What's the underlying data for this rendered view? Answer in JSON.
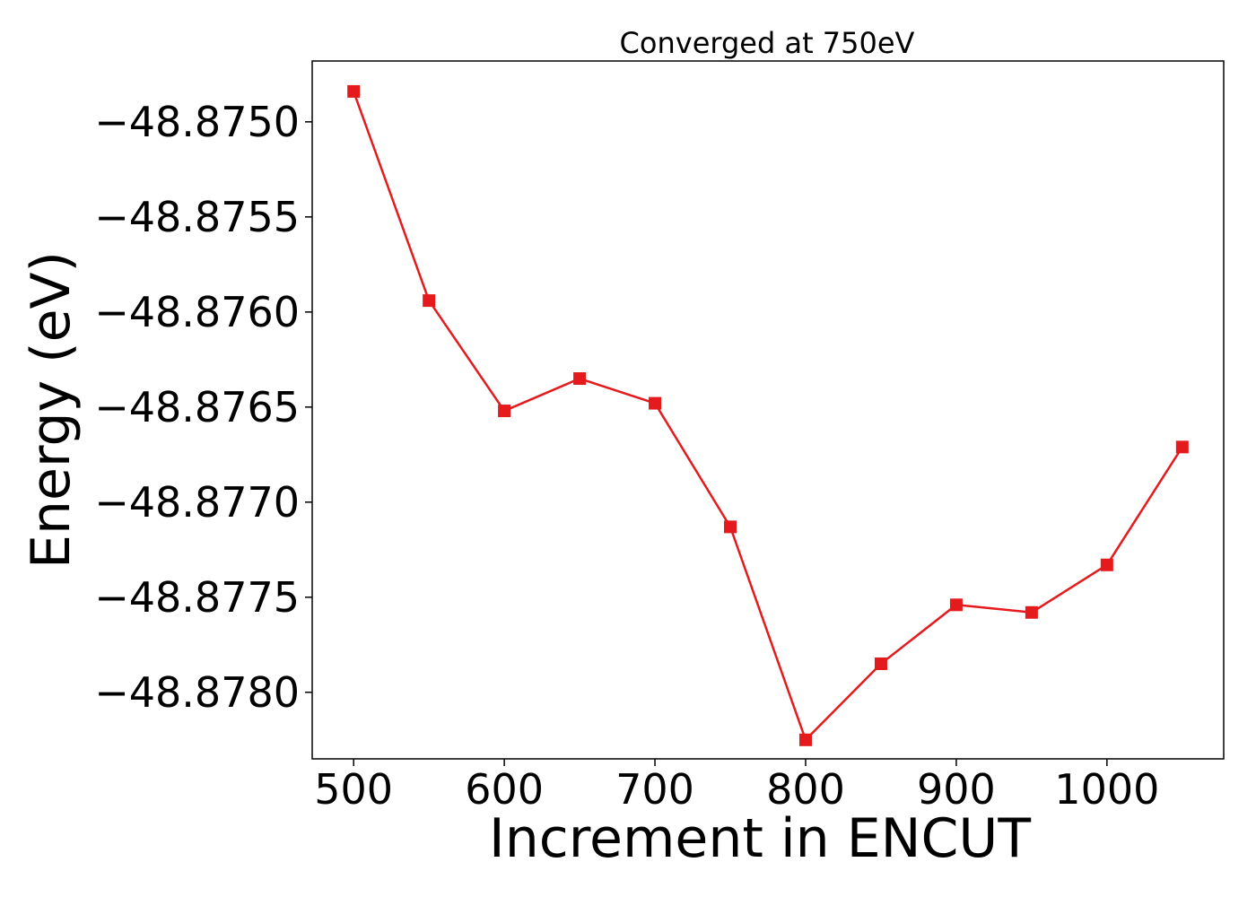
{
  "chart_data": {
    "type": "line",
    "title": "Converged at 750eV",
    "xlabel": "Increment in ENCUT",
    "ylabel": "Energy (eV)",
    "x": [
      500,
      550,
      600,
      650,
      700,
      750,
      800,
      850,
      900,
      950,
      1000,
      1050
    ],
    "series": [
      {
        "values": [
          -48.87484,
          -48.87594,
          -48.87652,
          -48.87635,
          -48.87648,
          -48.87713,
          -48.87825,
          -48.87785,
          -48.87754,
          -48.87758,
          -48.87733,
          -48.87671
        ],
        "color": "#e41a1c",
        "marker": "square"
      }
    ],
    "xticks": [
      500,
      600,
      700,
      800,
      900,
      1000
    ],
    "xtick_labels": [
      "500",
      "600",
      "700",
      "800",
      "900",
      "1000"
    ],
    "yticks": [
      -48.875,
      -48.8755,
      -48.876,
      -48.8765,
      -48.877,
      -48.8775,
      -48.878
    ],
    "ytick_labels": [
      "−48.8750",
      "−48.8755",
      "−48.8760",
      "−48.8765",
      "−48.8770",
      "−48.8775",
      "−48.8780"
    ],
    "xlim": [
      472.5,
      1077.5
    ],
    "ylim": [
      -48.87835,
      -48.87468
    ],
    "grid": false,
    "legend": "none"
  }
}
